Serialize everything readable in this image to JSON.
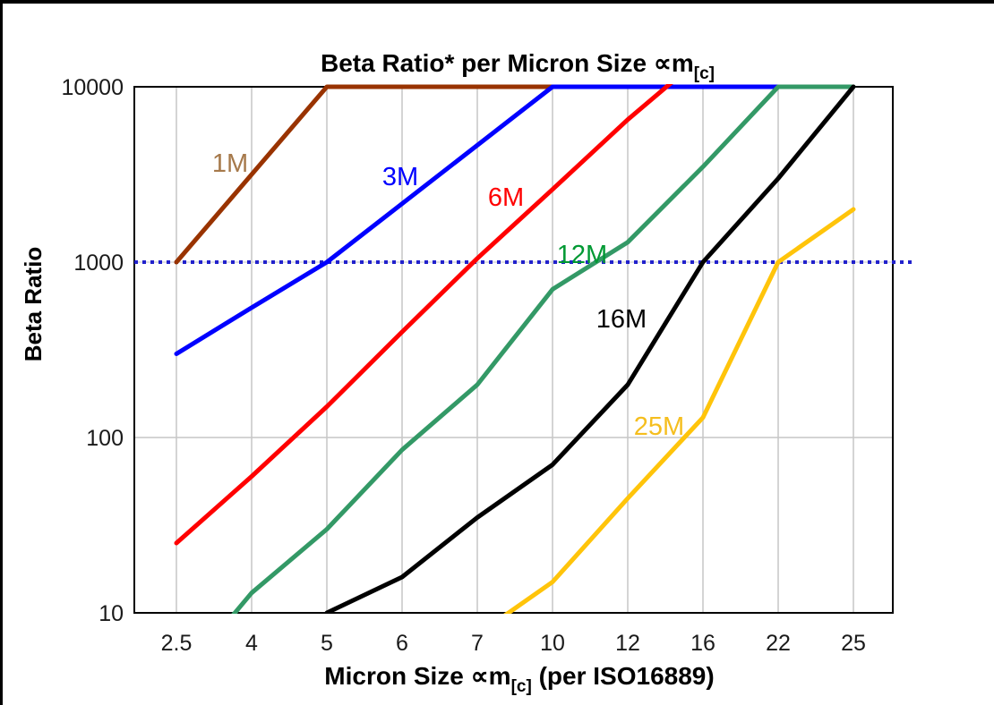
{
  "chart_data": {
    "type": "line",
    "title": {
      "text": "Beta Ratio* per Micron Size ",
      "symbol": "∝m",
      "subscript": "[c]"
    },
    "y_axis": {
      "label": "Beta Ratio",
      "scale": "log",
      "range": [
        10,
        10000
      ],
      "ticks": [
        "10000",
        "1000",
        "100",
        "10"
      ]
    },
    "x_axis": {
      "label": "Micron Size ",
      "symbol": "∝m",
      "subscript": "[c]",
      "suffix": " (per ISO16889)",
      "categories": [
        "2.5",
        "4",
        "5",
        "6",
        "7",
        "10",
        "12",
        "16",
        "22",
        "25"
      ]
    },
    "reference_line": {
      "value": 1000,
      "style": "dotted",
      "color": "#2121CC"
    },
    "grid": {
      "vertical": true,
      "horizontal_at": [
        100
      ],
      "color": "#C6C6C6"
    },
    "series": [
      {
        "name": "1M",
        "color": "#993300",
        "label_color": "#A6794B",
        "points": [
          [
            "2.5",
            1000
          ],
          [
            "4",
            3162
          ],
          [
            "5",
            10000
          ],
          [
            "10",
            10000
          ]
        ]
      },
      {
        "name": "3M",
        "color": "#0000FF",
        "label_color": "#0000FF",
        "points": [
          [
            "2.5",
            300
          ],
          [
            "4",
            550
          ],
          [
            "5",
            1000
          ],
          [
            "10",
            10000
          ],
          [
            "22",
            10000
          ]
        ]
      },
      {
        "name": "6M",
        "color": "#FF0000",
        "label_color": "#FF0000",
        "points": [
          [
            "2.5",
            25
          ],
          [
            "4",
            60
          ],
          [
            "5",
            150
          ],
          [
            "6",
            400
          ],
          [
            "7",
            1050
          ],
          [
            "10",
            2600
          ],
          [
            "12",
            6500
          ],
          [
            "16",
            15000
          ]
        ]
      },
      {
        "name": "12M",
        "color": "#339966",
        "label_color": "#009933",
        "points": [
          [
            "2.5",
            4
          ],
          [
            "4",
            13
          ],
          [
            "5",
            30
          ],
          [
            "6",
            85
          ],
          [
            "7",
            200
          ],
          [
            "10",
            700
          ],
          [
            "12",
            1300
          ],
          [
            "16",
            3500
          ],
          [
            "22",
            10000
          ],
          [
            "25",
            10000
          ]
        ]
      },
      {
        "name": "16M",
        "color": "#000000",
        "label_color": "#000000",
        "points": [
          [
            "5",
            10
          ],
          [
            "6",
            16
          ],
          [
            "7",
            35
          ],
          [
            "10",
            70
          ],
          [
            "12",
            200
          ],
          [
            "16",
            1000
          ],
          [
            "22",
            3000
          ],
          [
            "25",
            10000
          ]
        ]
      },
      {
        "name": "25M",
        "color": "#FFC40A",
        "label_color": "#F5BE1E",
        "points": [
          [
            "7",
            7.5
          ],
          [
            "10",
            15
          ],
          [
            "12",
            45
          ],
          [
            "16",
            130
          ],
          [
            "22",
            1000
          ],
          [
            "25",
            2000
          ]
        ]
      }
    ]
  }
}
